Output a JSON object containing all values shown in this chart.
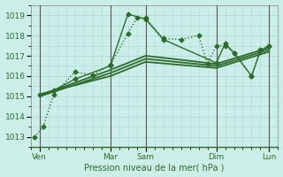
{
  "xlabel": "Pression niveau de la mer( hPa )",
  "bg_color": "#cceee8",
  "grid_color": "#b0ddd8",
  "line_color": "#2d6b2d",
  "ylim": [
    1012.5,
    1019.5
  ],
  "xlim": [
    0,
    14
  ],
  "yticks": [
    1013,
    1014,
    1015,
    1016,
    1017,
    1018,
    1019
  ],
  "xtick_positions": [
    0.5,
    4.5,
    6.5,
    10.5,
    13.5
  ],
  "xtick_labels": [
    "Ven",
    "Mar",
    "Sam",
    "Dim",
    "Lun"
  ],
  "vlines": [
    0.5,
    4.5,
    6.5,
    10.5,
    13.5
  ],
  "series": [
    {
      "x": [
        0.2,
        0.7,
        1.3,
        2.5,
        3.5,
        4.5,
        5.5,
        6.0,
        6.5,
        7.5,
        8.5,
        9.5,
        10.0,
        10.5,
        11.0,
        11.5,
        12.5,
        13.0,
        13.5
      ],
      "y": [
        1013.0,
        1013.5,
        1015.1,
        1016.2,
        1016.05,
        1016.55,
        1018.1,
        1018.85,
        1018.85,
        1017.85,
        1017.8,
        1018.0,
        1016.6,
        1017.5,
        1017.5,
        1017.15,
        1016.0,
        1017.3,
        1017.5
      ],
      "marker": "D",
      "markersize": 2.5,
      "linewidth": 1.0,
      "linestyle": ":"
    },
    {
      "x": [
        0.5,
        1.3,
        2.5,
        4.5,
        5.5,
        6.5,
        7.5,
        10.5,
        11.0,
        11.5,
        12.5,
        13.0,
        13.5
      ],
      "y": [
        1015.1,
        1015.3,
        1015.85,
        1016.5,
        1019.05,
        1018.8,
        1017.8,
        1016.65,
        1017.6,
        1017.15,
        1016.0,
        1017.25,
        1017.5
      ],
      "marker": "D",
      "markersize": 2.5,
      "linewidth": 1.0,
      "linestyle": "-"
    },
    {
      "x": [
        0.5,
        4.5,
        6.5,
        10.5,
        13.5
      ],
      "y": [
        1015.05,
        1016.3,
        1017.0,
        1016.6,
        1017.4
      ],
      "marker": null,
      "markersize": 0,
      "linewidth": 1.3,
      "linestyle": "-"
    },
    {
      "x": [
        0.5,
        4.5,
        6.5,
        10.5,
        13.5
      ],
      "y": [
        1015.0,
        1016.15,
        1016.85,
        1016.5,
        1017.3
      ],
      "marker": null,
      "markersize": 0,
      "linewidth": 1.3,
      "linestyle": "-"
    },
    {
      "x": [
        0.5,
        4.5,
        6.5,
        10.5,
        13.5
      ],
      "y": [
        1015.1,
        1016.0,
        1016.7,
        1016.4,
        1017.2
      ],
      "marker": null,
      "markersize": 0,
      "linewidth": 1.3,
      "linestyle": "-"
    }
  ]
}
